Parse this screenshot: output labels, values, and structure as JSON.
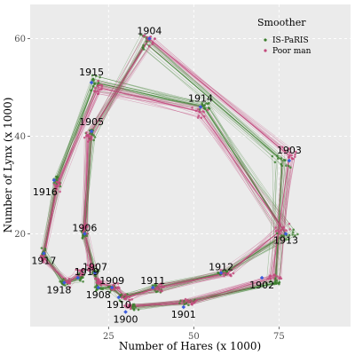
{
  "chart_data": {
    "type": "scatter",
    "xlabel": "Number of Hares (x 1000)",
    "ylabel": "Number of Lynx (x 1000)",
    "xlim": [
      2,
      96
    ],
    "ylim": [
      1,
      67
    ],
    "xticks": [
      25,
      50,
      75
    ],
    "yticks": [
      20,
      40,
      60
    ],
    "grid": true,
    "legend": {
      "title": "Smoother",
      "placement": "top-right",
      "entries": [
        "IS-PaRIS",
        "Poor man"
      ]
    },
    "series": [
      {
        "name": "IS-PaRIS",
        "color": "#3a7d2c",
        "trajectory": [
          {
            "year": "1900",
            "x": 32,
            "y": 5
          },
          {
            "year": "1901",
            "x": 48,
            "y": 6
          },
          {
            "year": "1902",
            "x": 74,
            "y": 10
          },
          {
            "year": "1903",
            "x": 76,
            "y": 35
          },
          {
            "year": "1904",
            "x": 36,
            "y": 59
          },
          {
            "year": "1905",
            "x": 20,
            "y": 41
          },
          {
            "year": "1906",
            "x": 18,
            "y": 20
          },
          {
            "year": "1907",
            "x": 21,
            "y": 12
          },
          {
            "year": "1908",
            "x": 22,
            "y": 9
          },
          {
            "year": "1909",
            "x": 26,
            "y": 9
          },
          {
            "year": "1910",
            "x": 29,
            "y": 7
          },
          {
            "year": "1911",
            "x": 39,
            "y": 9
          },
          {
            "year": "1912",
            "x": 59,
            "y": 12
          },
          {
            "year": "1913",
            "x": 77,
            "y": 20
          },
          {
            "year": "1914",
            "x": 53,
            "y": 46
          },
          {
            "year": "1915",
            "x": 21,
            "y": 51
          },
          {
            "year": "1916",
            "x": 10,
            "y": 31
          },
          {
            "year": "1917",
            "x": 6,
            "y": 16
          },
          {
            "year": "1918",
            "x": 12,
            "y": 10
          },
          {
            "year": "1919",
            "x": 17,
            "y": 11
          }
        ]
      },
      {
        "name": "Poor man",
        "color": "#c2487c",
        "trajectory": [
          {
            "year": "1900",
            "x": 31,
            "y": 5
          },
          {
            "year": "1901",
            "x": 49,
            "y": 6
          },
          {
            "year": "1902",
            "x": 73,
            "y": 11
          },
          {
            "year": "1903",
            "x": 78,
            "y": 36
          },
          {
            "year": "1904",
            "x": 37,
            "y": 60
          },
          {
            "year": "1905",
            "x": 19,
            "y": 40
          },
          {
            "year": "1906",
            "x": 18,
            "y": 21
          },
          {
            "year": "1907",
            "x": 20,
            "y": 13
          },
          {
            "year": "1908",
            "x": 22,
            "y": 10
          },
          {
            "year": "1909",
            "x": 27,
            "y": 9
          },
          {
            "year": "1910",
            "x": 30,
            "y": 7
          },
          {
            "year": "1911",
            "x": 40,
            "y": 9
          },
          {
            "year": "1912",
            "x": 60,
            "y": 12
          },
          {
            "year": "1913",
            "x": 76,
            "y": 21
          },
          {
            "year": "1914",
            "x": 52,
            "y": 45
          },
          {
            "year": "1915",
            "x": 22,
            "y": 50
          },
          {
            "year": "1916",
            "x": 10,
            "y": 30
          },
          {
            "year": "1917",
            "x": 6,
            "y": 15
          },
          {
            "year": "1918",
            "x": 13,
            "y": 10
          },
          {
            "year": "1919",
            "x": 17,
            "y": 12
          }
        ]
      }
    ],
    "years": [
      {
        "year": "1900",
        "x": 30,
        "y": 4
      },
      {
        "year": "1901",
        "x": 47,
        "y": 5
      },
      {
        "year": "1902",
        "x": 70,
        "y": 11
      },
      {
        "year": "1903",
        "x": 78,
        "y": 35
      },
      {
        "year": "1904",
        "x": 37,
        "y": 60
      },
      {
        "year": "1905",
        "x": 20,
        "y": 41
      },
      {
        "year": "1906",
        "x": 18,
        "y": 20
      },
      {
        "year": "1907",
        "x": 21,
        "y": 12
      },
      {
        "year": "1908",
        "x": 22,
        "y": 9
      },
      {
        "year": "1909",
        "x": 26,
        "y": 9
      },
      {
        "year": "1910",
        "x": 28,
        "y": 7
      },
      {
        "year": "1911",
        "x": 38,
        "y": 9
      },
      {
        "year": "1912",
        "x": 58,
        "y": 12
      },
      {
        "year": "1913",
        "x": 77,
        "y": 20
      },
      {
        "year": "1914",
        "x": 52,
        "y": 46
      },
      {
        "year": "1915",
        "x": 20,
        "y": 51
      },
      {
        "year": "1916",
        "x": 9,
        "y": 31
      },
      {
        "year": "1917",
        "x": 6,
        "y": 16
      },
      {
        "year": "1918",
        "x": 12,
        "y": 10
      },
      {
        "year": "1919",
        "x": 16,
        "y": 11
      }
    ]
  }
}
